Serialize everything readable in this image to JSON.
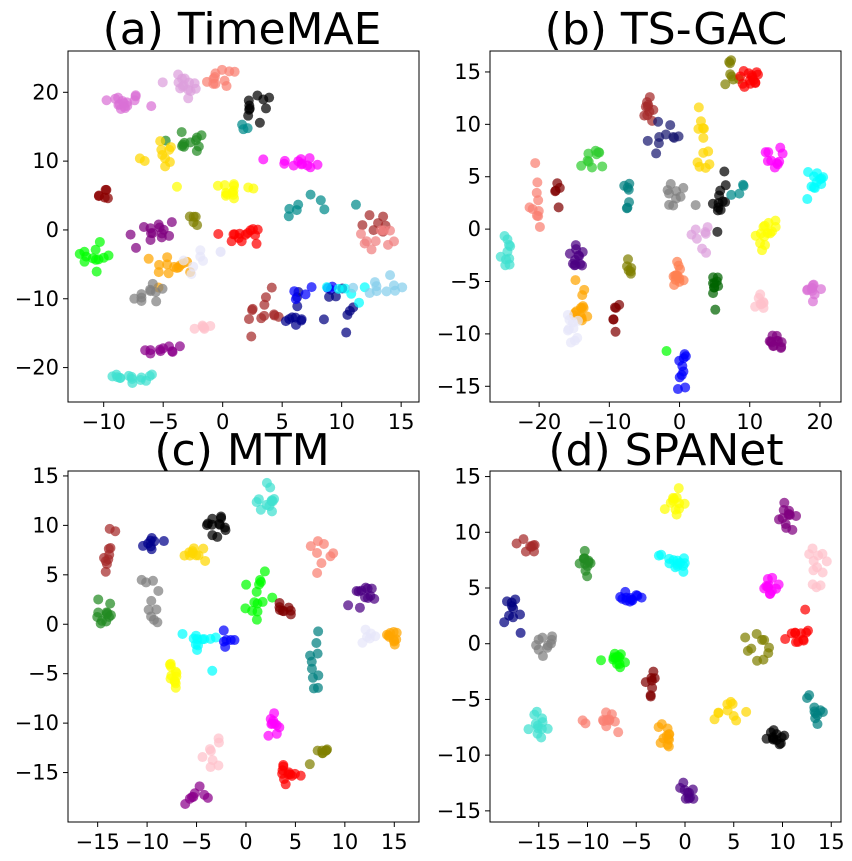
{
  "chart_data": [
    {
      "type": "scatter",
      "title": "(a) TimeMAE",
      "xlim": [
        -13,
        16.5
      ],
      "ylim": [
        -25,
        26
      ],
      "xticks": [
        -10,
        -5,
        0,
        5,
        10,
        15
      ],
      "yticks": [
        -20,
        -10,
        0,
        10,
        20
      ],
      "grid": false,
      "clusters": [
        {
          "color": "#DA70D6",
          "cx": -8.5,
          "cy": 18.5,
          "sx": 0.9,
          "sy": 0.7,
          "n": 16
        },
        {
          "color": "#DDA0DD",
          "cx": -3.2,
          "cy": 21.0,
          "sx": 1.0,
          "sy": 1.1,
          "n": 14
        },
        {
          "color": "#FA8072",
          "cx": 0.0,
          "cy": 22.2,
          "sx": 0.9,
          "sy": 0.8,
          "n": 11
        },
        {
          "color": "#000000",
          "cx": 3.0,
          "cy": 17.5,
          "sx": 0.6,
          "sy": 1.2,
          "n": 10
        },
        {
          "color": "#008B8B",
          "cx": 2.3,
          "cy": 14.5,
          "sx": 0.5,
          "sy": 0.6,
          "n": 3
        },
        {
          "color": "#228B22",
          "cx": -2.5,
          "cy": 13.0,
          "sx": 1.2,
          "sy": 0.9,
          "n": 12
        },
        {
          "color": "#FFD700",
          "cx": -5.5,
          "cy": 11.0,
          "sx": 0.8,
          "sy": 1.5,
          "n": 10
        },
        {
          "color": "#FF00FF",
          "cx": 6.5,
          "cy": 9.8,
          "sx": 1.2,
          "sy": 0.4,
          "n": 12
        },
        {
          "color": "#FFFF00",
          "cx": 0.6,
          "cy": 5.8,
          "sx": 1.1,
          "sy": 1.0,
          "n": 14
        },
        {
          "color": "#8B0000",
          "cx": -10.3,
          "cy": 5.0,
          "sx": 0.6,
          "sy": 0.9,
          "n": 6
        },
        {
          "color": "#008B8B",
          "cx": 7.5,
          "cy": 3.5,
          "sx": 1.6,
          "sy": 1.1,
          "n": 8
        },
        {
          "color": "#800080",
          "cx": -6.0,
          "cy": -0.5,
          "sx": 1.2,
          "sy": 1.2,
          "n": 14
        },
        {
          "color": "#808000",
          "cx": -2.3,
          "cy": 1.8,
          "sx": 0.3,
          "sy": 0.8,
          "n": 5
        },
        {
          "color": "#FF0000",
          "cx": 2.0,
          "cy": -0.8,
          "sx": 1.1,
          "sy": 0.7,
          "n": 14
        },
        {
          "color": "#A52A2A",
          "cx": 13.0,
          "cy": 1.2,
          "sx": 0.8,
          "sy": 1.1,
          "n": 7
        },
        {
          "color": "#F08080",
          "cx": 13.0,
          "cy": -1.5,
          "sx": 1.0,
          "sy": 1.0,
          "n": 10
        },
        {
          "color": "#00FF00",
          "cx": -10.7,
          "cy": -4.0,
          "sx": 0.8,
          "sy": 1.5,
          "n": 12
        },
        {
          "color": "#FFA500",
          "cx": -4.0,
          "cy": -5.0,
          "sx": 0.9,
          "sy": 0.8,
          "n": 14
        },
        {
          "color": "#E6E6FA",
          "cx": -1.8,
          "cy": -4.8,
          "sx": 1.0,
          "sy": 1.3,
          "n": 8
        },
        {
          "color": "#808080",
          "cx": -6.2,
          "cy": -9.5,
          "sx": 0.8,
          "sy": 1.1,
          "n": 10
        },
        {
          "color": "#A52A2A",
          "cx": 3.5,
          "cy": -12.0,
          "sx": 0.7,
          "sy": 1.5,
          "n": 12
        },
        {
          "color": "#00008B",
          "cx": 6.0,
          "cy": -12.5,
          "sx": 0.6,
          "sy": 1.5,
          "n": 10
        },
        {
          "color": "#0000FF",
          "cx": 7.0,
          "cy": -8.5,
          "sx": 1.3,
          "sy": 0.8,
          "n": 7
        },
        {
          "color": "#000080",
          "cx": 10.0,
          "cy": -11.5,
          "sx": 0.6,
          "sy": 1.8,
          "n": 8
        },
        {
          "color": "#00FFFF",
          "cx": 10.5,
          "cy": -9.5,
          "sx": 0.8,
          "sy": 1.0,
          "n": 6
        },
        {
          "color": "#87CEEB",
          "cx": 12.7,
          "cy": -8.2,
          "sx": 1.0,
          "sy": 0.7,
          "n": 10
        },
        {
          "color": "#FFC0CB",
          "cx": -1.5,
          "cy": -14.2,
          "sx": 0.7,
          "sy": 0.5,
          "n": 6
        },
        {
          "color": "#8B008B",
          "cx": -5.0,
          "cy": -17.5,
          "sx": 0.9,
          "sy": 0.6,
          "n": 10
        },
        {
          "color": "#40E0D0",
          "cx": -7.0,
          "cy": -21.3,
          "sx": 0.9,
          "sy": 0.6,
          "n": 14
        }
      ]
    },
    {
      "type": "scatter",
      "title": "(b) TS-GAC",
      "xlim": [
        -27,
        23
      ],
      "ylim": [
        -16.5,
        17
      ],
      "xticks": [
        -20,
        -10,
        0,
        10,
        20
      ],
      "yticks": [
        -15,
        -10,
        -5,
        0,
        5,
        10,
        15
      ],
      "grid": false,
      "clusters": [
        {
          "color": "#808000",
          "cx": 7.2,
          "cy": 14.3,
          "sx": 0.6,
          "sy": 0.9,
          "n": 8
        },
        {
          "color": "#FF0000",
          "cx": 10.0,
          "cy": 14.5,
          "sx": 1.0,
          "sy": 0.4,
          "n": 14
        },
        {
          "color": "#A52A2A",
          "cx": -4.2,
          "cy": 12.0,
          "sx": 0.6,
          "sy": 1.6,
          "n": 10
        },
        {
          "color": "#191970",
          "cx": -2.0,
          "cy": 8.8,
          "sx": 1.2,
          "sy": 0.8,
          "n": 10
        },
        {
          "color": "#FFD700",
          "cx": 3.5,
          "cy": 8.5,
          "sx": 0.5,
          "sy": 1.8,
          "n": 12
        },
        {
          "color": "#FF00FF",
          "cx": 12.8,
          "cy": 6.8,
          "sx": 0.8,
          "sy": 0.5,
          "n": 10
        },
        {
          "color": "#00FFFF",
          "cx": 19.5,
          "cy": 4.3,
          "sx": 0.8,
          "sy": 0.8,
          "n": 12
        },
        {
          "color": "#32CD32",
          "cx": -12.5,
          "cy": 6.5,
          "sx": 0.8,
          "sy": 0.6,
          "n": 10
        },
        {
          "color": "#800000",
          "cx": -17.5,
          "cy": 3.8,
          "sx": 0.3,
          "sy": 0.6,
          "n": 5
        },
        {
          "color": "#FA8072",
          "cx": -20.5,
          "cy": 2.5,
          "sx": 0.5,
          "sy": 1.5,
          "n": 10
        },
        {
          "color": "#008080",
          "cx": -7.5,
          "cy": 3.0,
          "sx": 0.5,
          "sy": 1.0,
          "n": 7
        },
        {
          "color": "#808080",
          "cx": -0.5,
          "cy": 3.2,
          "sx": 1.0,
          "sy": 0.8,
          "n": 10
        },
        {
          "color": "#000000",
          "cx": 5.8,
          "cy": 3.0,
          "sx": 0.5,
          "sy": 1.4,
          "n": 12
        },
        {
          "color": "#008B8B",
          "cx": 8.5,
          "cy": 3.5,
          "sx": 0.5,
          "sy": 0.6,
          "n": 4
        },
        {
          "color": "#FFFF00",
          "cx": 12.5,
          "cy": -0.5,
          "sx": 0.8,
          "sy": 0.6,
          "n": 14
        },
        {
          "color": "#DDA0DD",
          "cx": 2.7,
          "cy": -1.0,
          "sx": 0.6,
          "sy": 0.6,
          "n": 8
        },
        {
          "color": "#40E0D0",
          "cx": -24.3,
          "cy": -2.0,
          "sx": 0.5,
          "sy": 0.9,
          "n": 10
        },
        {
          "color": "#4B0082",
          "cx": -14.5,
          "cy": -2.8,
          "sx": 0.7,
          "sy": 0.6,
          "n": 12
        },
        {
          "color": "#808000",
          "cx": -7.0,
          "cy": -3.8,
          "sx": 0.5,
          "sy": 0.5,
          "n": 6
        },
        {
          "color": "#FF7F50",
          "cx": -0.3,
          "cy": -4.7,
          "sx": 0.5,
          "sy": 0.8,
          "n": 12
        },
        {
          "color": "#006400",
          "cx": 5.2,
          "cy": -6.0,
          "sx": 0.4,
          "sy": 1.0,
          "n": 10
        },
        {
          "color": "#FFC0CB",
          "cx": 11.5,
          "cy": -7.0,
          "sx": 0.5,
          "sy": 0.6,
          "n": 8
        },
        {
          "color": "#DA70D6",
          "cx": 19.0,
          "cy": -5.8,
          "sx": 0.6,
          "sy": 0.4,
          "n": 10
        },
        {
          "color": "#FFA500",
          "cx": -14.0,
          "cy": -7.0,
          "sx": 0.5,
          "sy": 1.2,
          "n": 14
        },
        {
          "color": "#E6E6FA",
          "cx": -15.0,
          "cy": -9.5,
          "sx": 0.5,
          "sy": 0.8,
          "n": 10
        },
        {
          "color": "#800000",
          "cx": -9.2,
          "cy": -8.3,
          "sx": 0.2,
          "sy": 0.8,
          "n": 6
        },
        {
          "color": "#800080",
          "cx": 13.5,
          "cy": -11.0,
          "sx": 0.5,
          "sy": 0.4,
          "n": 12
        },
        {
          "color": "#00FF00",
          "cx": -1.8,
          "cy": -11.5,
          "sx": 0.1,
          "sy": 0.1,
          "n": 1
        },
        {
          "color": "#0000FF",
          "cx": 0.4,
          "cy": -13.0,
          "sx": 0.3,
          "sy": 1.2,
          "n": 10
        }
      ]
    },
    {
      "type": "scatter",
      "title": "(c) MTM",
      "xlim": [
        -18,
        17.5
      ],
      "ylim": [
        -20,
        15.5
      ],
      "xticks": [
        -15,
        -10,
        -5,
        0,
        5,
        10,
        15
      ],
      "yticks": [
        -15,
        -10,
        -5,
        0,
        5,
        10,
        15
      ],
      "grid": false,
      "clusters": [
        {
          "color": "#40E0D0",
          "cx": 2.0,
          "cy": 12.5,
          "sx": 0.6,
          "sy": 0.9,
          "n": 12
        },
        {
          "color": "#000000",
          "cx": -3.0,
          "cy": 10.0,
          "sx": 0.6,
          "sy": 0.6,
          "n": 12
        },
        {
          "color": "#00008B",
          "cx": -9.5,
          "cy": 8.5,
          "sx": 0.4,
          "sy": 0.6,
          "n": 8
        },
        {
          "color": "#A52A2A",
          "cx": -13.8,
          "cy": 7.5,
          "sx": 0.4,
          "sy": 1.4,
          "n": 10
        },
        {
          "color": "#FFD700",
          "cx": -5.0,
          "cy": 7.0,
          "sx": 0.6,
          "sy": 0.6,
          "n": 10
        },
        {
          "color": "#FA8072",
          "cx": 7.5,
          "cy": 7.5,
          "sx": 0.6,
          "sy": 0.6,
          "n": 8
        },
        {
          "color": "#00FF00",
          "cx": 1.2,
          "cy": 3.0,
          "sx": 0.5,
          "sy": 1.6,
          "n": 14
        },
        {
          "color": "#808080",
          "cx": -9.5,
          "cy": 2.5,
          "sx": 0.5,
          "sy": 1.2,
          "n": 10
        },
        {
          "color": "#228B22",
          "cx": -14.0,
          "cy": 1.0,
          "sx": 0.5,
          "sy": 1.0,
          "n": 12
        },
        {
          "color": "#4B0082",
          "cx": 11.5,
          "cy": 2.5,
          "sx": 0.6,
          "sy": 0.7,
          "n": 12
        },
        {
          "color": "#800000",
          "cx": 3.5,
          "cy": 1.2,
          "sx": 0.8,
          "sy": 0.7,
          "n": 8
        },
        {
          "color": "#00FFFF",
          "cx": -4.5,
          "cy": -2.0,
          "sx": 0.8,
          "sy": 0.9,
          "n": 12
        },
        {
          "color": "#0000FF",
          "cx": -2.0,
          "cy": -1.5,
          "sx": 0.6,
          "sy": 0.6,
          "n": 6
        },
        {
          "color": "#FFA500",
          "cx": 14.8,
          "cy": -1.3,
          "sx": 0.5,
          "sy": 0.5,
          "n": 10
        },
        {
          "color": "#E6E6FA",
          "cx": 12.0,
          "cy": -1.5,
          "sx": 1.0,
          "sy": 0.6,
          "n": 6
        },
        {
          "color": "#008080",
          "cx": 7.0,
          "cy": -4.0,
          "sx": 0.4,
          "sy": 1.5,
          "n": 10
        },
        {
          "color": "#FFFF00",
          "cx": -7.3,
          "cy": -5.3,
          "sx": 0.6,
          "sy": 0.7,
          "n": 12
        },
        {
          "color": "#FF00FF",
          "cx": 2.8,
          "cy": -9.8,
          "sx": 0.3,
          "sy": 0.7,
          "n": 10
        },
        {
          "color": "#808000",
          "cx": 7.5,
          "cy": -12.8,
          "sx": 0.5,
          "sy": 0.7,
          "n": 8
        },
        {
          "color": "#FFC0CB",
          "cx": -3.0,
          "cy": -13.0,
          "sx": 0.6,
          "sy": 0.9,
          "n": 8
        },
        {
          "color": "#FF0000",
          "cx": 4.5,
          "cy": -15.2,
          "sx": 0.7,
          "sy": 0.4,
          "n": 12
        },
        {
          "color": "#8B008B",
          "cx": -5.2,
          "cy": -17.3,
          "sx": 0.6,
          "sy": 0.4,
          "n": 8
        }
      ]
    },
    {
      "type": "scatter",
      "title": "(d) SPANet",
      "xlim": [
        -20,
        16
      ],
      "ylim": [
        -16,
        15.5
      ],
      "xticks": [
        -15,
        -10,
        -5,
        0,
        5,
        10,
        15
      ],
      "yticks": [
        -15,
        -10,
        -5,
        0,
        5,
        10,
        15
      ],
      "grid": false,
      "clusters": [
        {
          "color": "#FFFF00",
          "cx": -1.2,
          "cy": 12.0,
          "sx": 0.6,
          "sy": 0.8,
          "n": 12
        },
        {
          "color": "#800080",
          "cx": 10.5,
          "cy": 11.5,
          "sx": 0.4,
          "sy": 0.8,
          "n": 12
        },
        {
          "color": "#FFC0CB",
          "cx": 13.5,
          "cy": 6.5,
          "sx": 0.6,
          "sy": 1.3,
          "n": 12
        },
        {
          "color": "#A52A2A",
          "cx": -16.0,
          "cy": 8.5,
          "sx": 0.5,
          "sy": 0.5,
          "n": 8
        },
        {
          "color": "#228B22",
          "cx": -10.3,
          "cy": 7.5,
          "sx": 0.5,
          "sy": 0.8,
          "n": 12
        },
        {
          "color": "#00FFFF",
          "cx": -1.0,
          "cy": 7.5,
          "sx": 0.9,
          "sy": 0.4,
          "n": 14
        },
        {
          "color": "#FF00FF",
          "cx": 8.5,
          "cy": 5.0,
          "sx": 0.5,
          "sy": 0.5,
          "n": 12
        },
        {
          "color": "#000080",
          "cx": -17.5,
          "cy": 3.0,
          "sx": 0.5,
          "sy": 1.0,
          "n": 10
        },
        {
          "color": "#0000FF",
          "cx": -5.5,
          "cy": 4.2,
          "sx": 0.6,
          "sy": 0.4,
          "n": 12
        },
        {
          "color": "#FF0000",
          "cx": 11.5,
          "cy": 1.0,
          "sx": 0.5,
          "sy": 0.6,
          "n": 12
        },
        {
          "color": "#808080",
          "cx": -14.0,
          "cy": 0.0,
          "sx": 0.8,
          "sy": 0.5,
          "n": 10
        },
        {
          "color": "#808000",
          "cx": 8.0,
          "cy": -0.5,
          "sx": 0.8,
          "sy": 0.8,
          "n": 10
        },
        {
          "color": "#00FF00",
          "cx": -7.2,
          "cy": -1.5,
          "sx": 0.8,
          "sy": 0.4,
          "n": 12
        },
        {
          "color": "#008080",
          "cx": 13.5,
          "cy": -5.5,
          "sx": 0.6,
          "sy": 1.0,
          "n": 10
        },
        {
          "color": "#800000",
          "cx": -3.5,
          "cy": -3.5,
          "sx": 0.3,
          "sy": 1.0,
          "n": 8
        },
        {
          "color": "#FFD700",
          "cx": 4.5,
          "cy": -6.0,
          "sx": 0.8,
          "sy": 0.5,
          "n": 10
        },
        {
          "color": "#40E0D0",
          "cx": -15.0,
          "cy": -7.5,
          "sx": 0.4,
          "sy": 0.8,
          "n": 12
        },
        {
          "color": "#FA8072",
          "cx": -8.0,
          "cy": -7.0,
          "sx": 0.8,
          "sy": 0.5,
          "n": 12
        },
        {
          "color": "#FFA500",
          "cx": -2.0,
          "cy": -8.5,
          "sx": 0.3,
          "sy": 0.9,
          "n": 12
        },
        {
          "color": "#000000",
          "cx": 9.5,
          "cy": -8.3,
          "sx": 0.5,
          "sy": 0.4,
          "n": 12
        },
        {
          "color": "#4B0082",
          "cx": 0.3,
          "cy": -13.5,
          "sx": 0.4,
          "sy": 0.5,
          "n": 10
        }
      ]
    }
  ]
}
